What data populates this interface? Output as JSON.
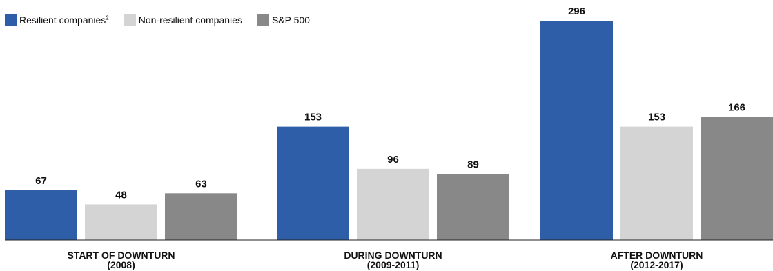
{
  "chart_data": {
    "type": "bar",
    "categories": [
      {
        "line1": "START OF DOWNTURN",
        "line2": "(2008)"
      },
      {
        "line1": "DURING DOWNTURN",
        "line2": "(2009-2011)"
      },
      {
        "line1": "AFTER DOWNTURN",
        "line2": "(2012-2017)"
      }
    ],
    "series": [
      {
        "name": "Resilient companies",
        "superscript": "2",
        "color": "#2f5ea8",
        "values": [
          67,
          153,
          296
        ]
      },
      {
        "name": "Non-resilient companies",
        "color": "#d4d4d4",
        "values": [
          48,
          96,
          153
        ]
      },
      {
        "name": "S&P 500",
        "color": "#888888",
        "values": [
          63,
          89,
          166
        ]
      }
    ],
    "ylim": [
      0,
      296
    ],
    "grid": false,
    "legend_position": "top-left"
  }
}
